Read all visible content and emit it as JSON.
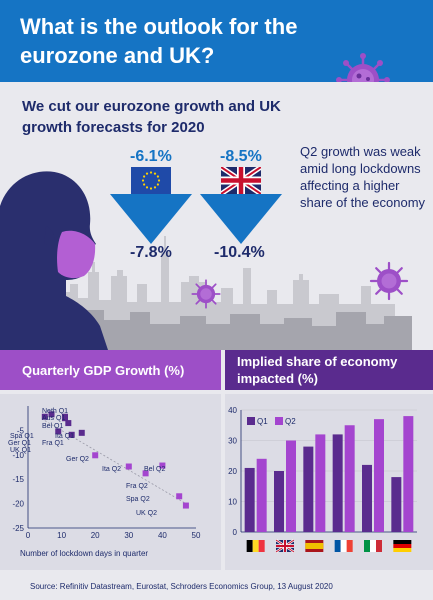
{
  "header": {
    "title": "What is the outlook for the eurozone and UK?"
  },
  "forecast": {
    "subhead": "We cut our eurozone growth and UK growth forecasts for 2020",
    "eurozone": {
      "old": "-6.1%",
      "new": "-7.8%"
    },
    "uk": {
      "old": "-8.5%",
      "new": "-10.4%"
    },
    "note": "Q2 growth was weak amid long lockdowns affecting a higher share of the economy"
  },
  "left_panel": {
    "title": "Quarterly GDP Growth (%)"
  },
  "right_panel": {
    "title": "Implied share of economy impacted (%)"
  },
  "footer": {
    "source": "Source: Refinitiv Datastream, Eurostat, Schroders Economics Group, 13 August 2020"
  },
  "colors": {
    "header_blue": "#1574c4",
    "navy": "#1e2b6b",
    "purple": "#9d4fc7",
    "dark_purple": "#5a2b8e",
    "q1": "#5a2b8e",
    "q2": "#a445cf"
  },
  "chart_data": [
    {
      "type": "scatter",
      "title": "Quarterly GDP Growth (%)",
      "xlabel": "Number of lockdown days in quarter",
      "ylabel": "",
      "xlim": [
        0,
        50
      ],
      "ylim": [
        -25,
        0
      ],
      "xticks": [
        0,
        10,
        20,
        30,
        40,
        50
      ],
      "yticks": [
        -5,
        -10,
        -15,
        -20,
        -25
      ],
      "points": [
        {
          "label": "Neth Q1",
          "x": 7,
          "y": -1.7,
          "q": "Q1"
        },
        {
          "label": "Aus Q1",
          "x": 11,
          "y": -2.5,
          "q": "Q1"
        },
        {
          "label": "Bel Q1",
          "x": 12,
          "y": -3.5,
          "q": "Q1"
        },
        {
          "label": "Spa Q1",
          "x": 9,
          "y": -5.2,
          "q": "Q1"
        },
        {
          "label": "Ger Q1",
          "x": 5,
          "y": -2.2,
          "q": "Q1"
        },
        {
          "label": "Fra Q1",
          "x": 13,
          "y": -5.9,
          "q": "Q1"
        },
        {
          "label": "UK Q1",
          "x": 11,
          "y": -2.2,
          "q": "Q1"
        },
        {
          "label": "Ita Q1",
          "x": 16,
          "y": -5.5,
          "q": "Q1"
        },
        {
          "label": "Ger Q2",
          "x": 20,
          "y": -10.1,
          "q": "Q2"
        },
        {
          "label": "Ita Q2",
          "x": 30,
          "y": -12.4,
          "q": "Q2"
        },
        {
          "label": "Bel Q2",
          "x": 40,
          "y": -12.2,
          "q": "Q2"
        },
        {
          "label": "Fra Q2",
          "x": 35,
          "y": -13.8,
          "q": "Q2"
        },
        {
          "label": "Spa Q2",
          "x": 45,
          "y": -18.5,
          "q": "Q2"
        },
        {
          "label": "UK Q2",
          "x": 47,
          "y": -20.4,
          "q": "Q2"
        }
      ],
      "trendline": {
        "x": [
          5,
          47
        ],
        "y": [
          -3,
          -20
        ]
      }
    },
    {
      "type": "bar",
      "title": "Implied share of economy impacted (%)",
      "categories": [
        "Belgium",
        "UK",
        "Spain",
        "France",
        "Italy",
        "Germany"
      ],
      "flags": [
        "belgium-flag",
        "uk-flag",
        "spain-flag",
        "france-flag",
        "italy-flag",
        "germany-flag"
      ],
      "series": [
        {
          "name": "Q1",
          "values": [
            21,
            20,
            28,
            32,
            22,
            18
          ]
        },
        {
          "name": "Q2",
          "values": [
            24,
            30,
            32,
            35,
            37,
            38
          ]
        }
      ],
      "ylim": [
        0,
        40
      ],
      "yticks": [
        0,
        10,
        20,
        30,
        40
      ],
      "legend": "top-left"
    }
  ]
}
